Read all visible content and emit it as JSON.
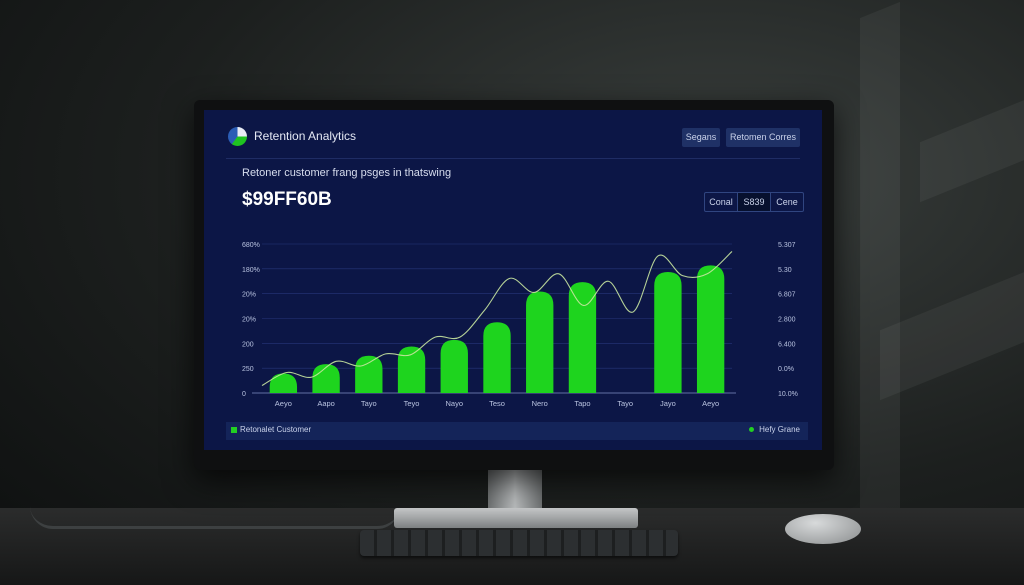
{
  "app": {
    "title": "Retention Analytics",
    "buttons": [
      "Segans",
      "Retomen Corres"
    ]
  },
  "subtitle": "Retoner customer frang psges in thatswing",
  "metric": "$99FF60B",
  "segmented": {
    "items": [
      "Conal",
      "S839",
      "Cene"
    ],
    "active_index": 1
  },
  "legend": {
    "left": "Retonalet Customer",
    "right": "Hefy Grane"
  },
  "colors": {
    "bar": "#1ed41e",
    "curve": "#c8e6a0",
    "screen_bg": "#0c1646"
  },
  "chart_data": {
    "type": "bar",
    "categories": [
      "Aeyo",
      "Aapo",
      "Tayo",
      "Teyo",
      "Nayo",
      "Teso",
      "Nero",
      "Tapo",
      "Tayo",
      "Jayo",
      "Aeyo"
    ],
    "left_ticks": [
      "680%",
      "180%",
      "20%",
      "20%",
      "200",
      "250",
      "0"
    ],
    "right_ticks": [
      "5.307",
      "5.30",
      "6.807",
      "2.800",
      "6.400",
      "0.0%",
      "10.0%"
    ],
    "values": [
      1.05,
      1.55,
      2.0,
      2.5,
      2.85,
      3.8,
      5.45,
      5.95,
      0.0,
      6.5,
      6.85
    ],
    "curve": [
      0.4,
      1.1,
      0.85,
      1.7,
      1.45,
      2.1,
      2.05,
      3.0,
      3.0,
      4.45,
      6.15,
      5.4,
      6.4,
      4.7,
      6.0,
      4.35,
      7.35,
      6.3,
      6.4,
      7.6
    ],
    "ylim": [
      0,
      8
    ],
    "grid": true,
    "legend": "bottom"
  }
}
